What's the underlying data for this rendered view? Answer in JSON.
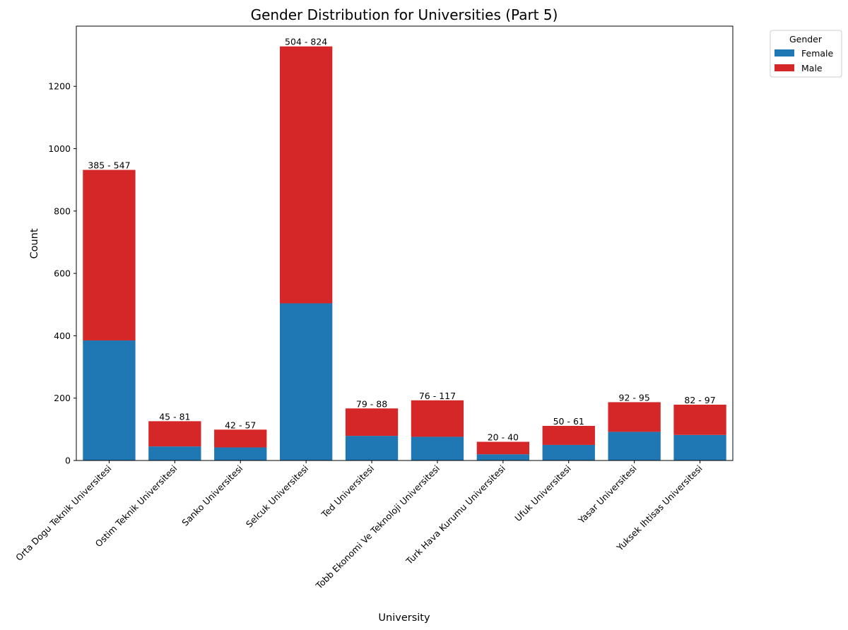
{
  "chart_data": {
    "type": "bar",
    "stacked": true,
    "title": "Gender Distribution for Universities (Part 5)",
    "xlabel": "University",
    "ylabel": "Count",
    "ylim": [
      0,
      1393
    ],
    "yticks": [
      0,
      200,
      400,
      600,
      800,
      1000,
      1200
    ],
    "grid": false,
    "legend_position": "outside-top-right",
    "legend_title": "Gender",
    "categories": [
      "Orta Dogu Teknik Universitesi",
      "Ostim Teknik Universitesi",
      "Sanko Universitesi",
      "Selcuk Universitesi",
      "Ted Universitesi",
      "Tobb Ekonomi Ve Teknoloji Universitesi",
      "Turk Hava Kurumu Universitesi",
      "Ufuk Universitesi",
      "Yasar Universitesi",
      "Yuksek Ihtisas Universitesi"
    ],
    "series": [
      {
        "name": "Female",
        "color": "#1f77b4",
        "values": [
          385,
          45,
          42,
          504,
          79,
          76,
          20,
          50,
          92,
          82
        ]
      },
      {
        "name": "Male",
        "color": "#d62728",
        "values": [
          547,
          81,
          57,
          824,
          88,
          117,
          40,
          61,
          95,
          97
        ]
      }
    ],
    "data_labels": [
      "385 - 547",
      "45 - 81",
      "42 - 57",
      "504 - 824",
      "79 - 88",
      "76 - 117",
      "20 - 40",
      "50 - 61",
      "92 - 95",
      "82 - 97"
    ]
  }
}
